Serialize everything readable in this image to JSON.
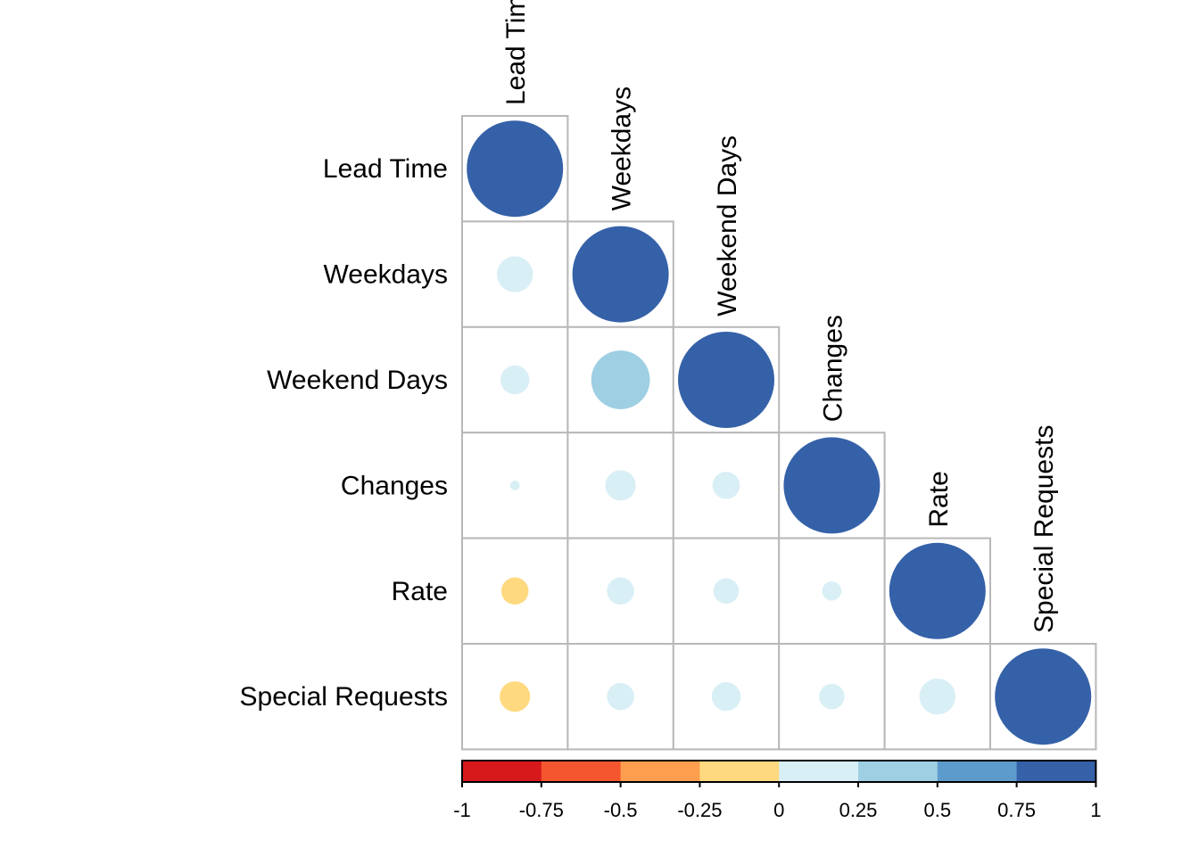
{
  "chart_data": {
    "type": "heatmap",
    "subtype": "correlation-lower-triangle-circles",
    "variables": [
      "Lead Time",
      "Weekdays",
      "Weekend Days",
      "Changes",
      "Rate",
      "Special Requests"
    ],
    "matrix": [
      [
        1.0,
        0.14,
        0.09,
        0.01,
        -0.08,
        -0.1
      ],
      [
        0.14,
        1.0,
        0.37,
        0.1,
        0.08,
        0.08
      ],
      [
        0.09,
        0.37,
        1.0,
        0.08,
        0.07,
        0.09
      ],
      [
        0.01,
        0.1,
        0.08,
        1.0,
        0.04,
        0.07
      ],
      [
        -0.08,
        0.08,
        0.07,
        0.04,
        1.0,
        0.14
      ],
      [
        -0.1,
        0.08,
        0.09,
        0.07,
        0.14,
        1.0
      ]
    ],
    "color_scale": {
      "range": [
        -1,
        1
      ],
      "breaks": [
        -1,
        -0.75,
        -0.5,
        -0.25,
        0,
        0.25,
        0.5,
        0.75,
        1
      ],
      "colors": [
        "#d7191c",
        "#f4562f",
        "#fd9e4e",
        "#fed97f",
        "#d9eff6",
        "#9ecfe3",
        "#5d9bcc",
        "#3561a8"
      ],
      "tick_labels": [
        "-1",
        "-0.75",
        "-0.5",
        "-0.25",
        "0",
        "0.25",
        "0.5",
        "0.75",
        "1"
      ]
    },
    "legend_placement": "bottom"
  }
}
